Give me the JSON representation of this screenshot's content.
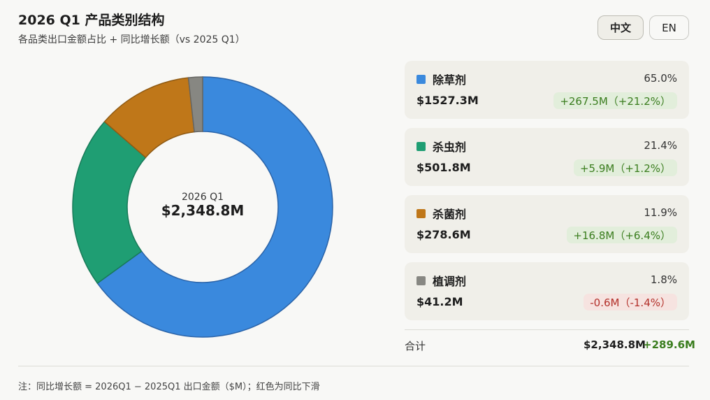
{
  "header": {
    "title": "2026 Q1 产品类别结构",
    "subtitle": "各品类出口金额占比 + 同比增长额（vs 2025 Q1）"
  },
  "language": {
    "zh_label": "中文",
    "en_label": "EN",
    "active": "zh"
  },
  "center": {
    "label": "2026 Q1",
    "value": "$2,348.8M"
  },
  "categories": [
    {
      "name": "除草剂",
      "share": "65.0%",
      "amount": "$1527.3M",
      "change": "+267.5M（+21.2%）",
      "direction": "up",
      "color": "#3a89dd"
    },
    {
      "name": "杀虫剂",
      "share": "21.4%",
      "amount": "$501.8M",
      "change": "+5.9M（+1.2%）",
      "direction": "up",
      "color": "#1f9e73"
    },
    {
      "name": "杀菌剂",
      "share": "11.9%",
      "amount": "$278.6M",
      "change": "+16.8M（+6.4%）",
      "direction": "up",
      "color": "#bf7719"
    },
    {
      "name": "植调剂",
      "share": "1.8%",
      "amount": "$41.2M",
      "change": "-0.6M（-1.4%）",
      "direction": "down",
      "color": "#878782"
    }
  ],
  "total": {
    "label": "合计",
    "amount": "$2,348.8M",
    "change": "+289.6M"
  },
  "footnote": "注：同比增长额 = 2026Q1 − 2025Q1 出口金额（$M）；红色为同比下滑",
  "chart_data": {
    "type": "pie",
    "categories": [
      "除草剂",
      "杀虫剂",
      "杀菌剂",
      "植调剂"
    ],
    "values": [
      1527.3,
      501.8,
      278.6,
      41.2
    ],
    "shares": [
      65.0,
      21.4,
      11.9,
      1.8
    ],
    "yoy_change": [
      267.5,
      5.9,
      16.8,
      -0.6
    ],
    "yoy_change_pct": [
      21.2,
      1.2,
      6.4,
      -1.4
    ],
    "colors": [
      "#3a89dd",
      "#1f9e73",
      "#bf7719",
      "#878782"
    ],
    "title": "2026 Q1 产品类别结构",
    "subtitle": "各品类出口金额占比 + 同比增长额（vs 2025 Q1）",
    "center_label": "2026 Q1",
    "center_value": "$2,348.8M",
    "legend": "right"
  }
}
